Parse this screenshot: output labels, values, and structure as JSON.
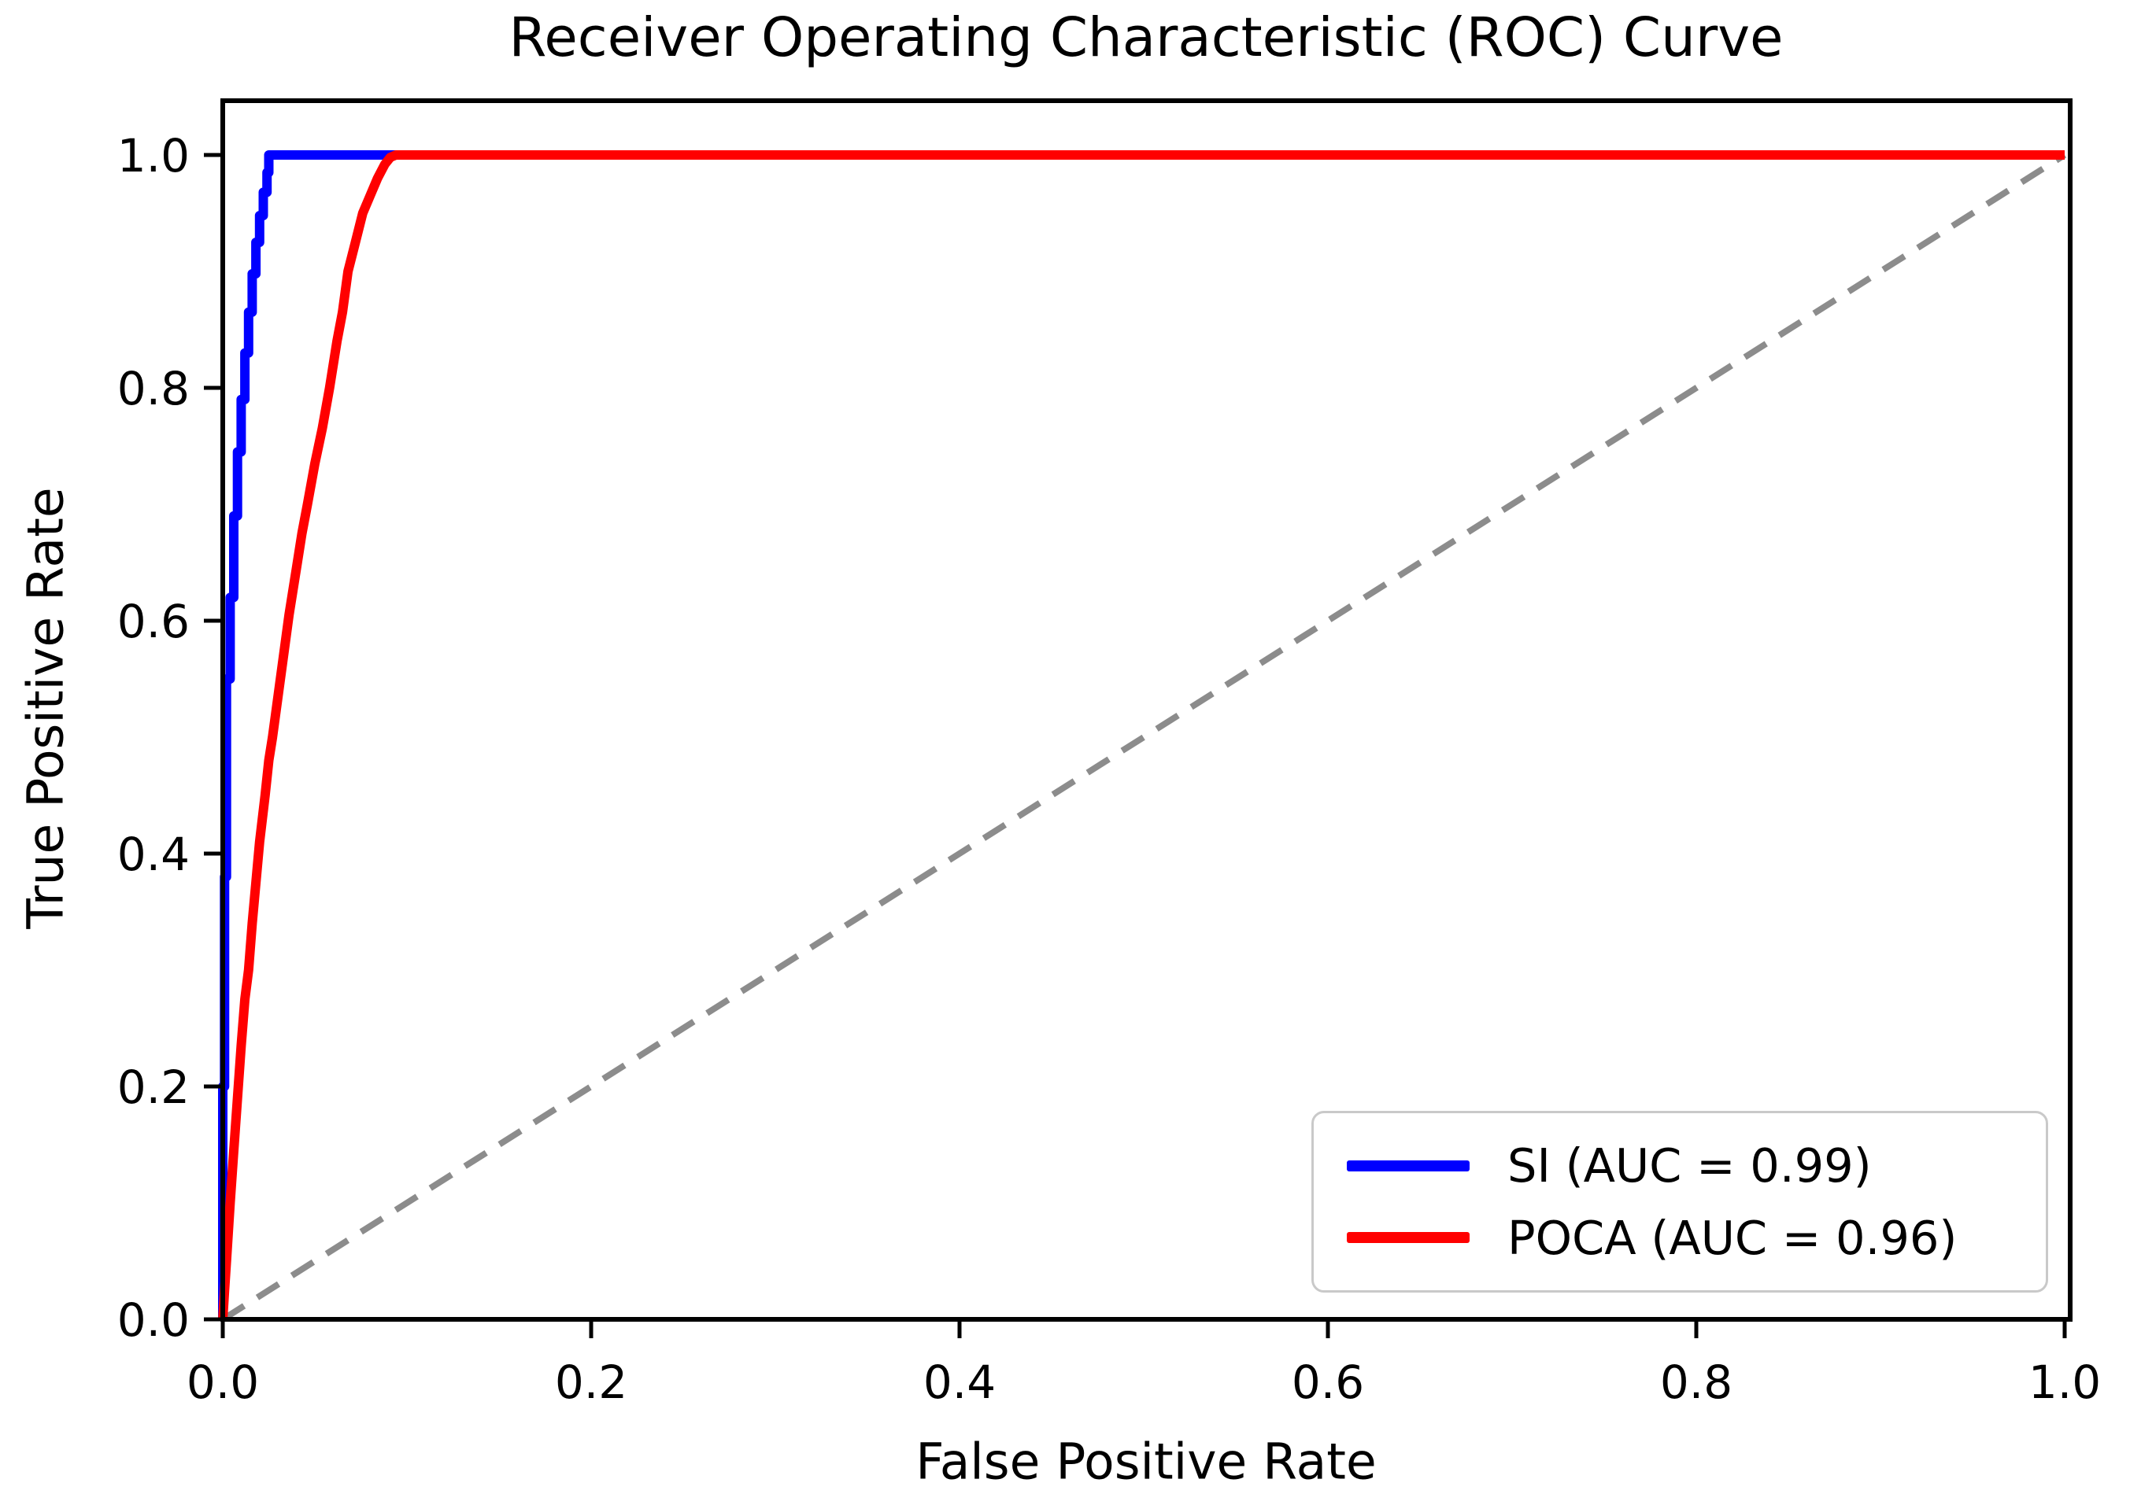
{
  "figure": {
    "background": "#ffffff",
    "text_color": "#000000",
    "spine_color": "#000000"
  },
  "chart_data": {
    "type": "line",
    "title": "Receiver Operating Characteristic (ROC) Curve",
    "xlabel": "False Positive Rate",
    "ylabel": "True Positive Rate",
    "xlim": [
      0.0,
      1.003
    ],
    "ylim": [
      0.0,
      1.047
    ],
    "grid": false,
    "xticks": {
      "values": [
        0.0,
        0.2,
        0.4,
        0.6,
        0.8,
        1.0
      ],
      "labels": [
        "0.0",
        "0.2",
        "0.4",
        "0.6",
        "0.8",
        "1.0"
      ]
    },
    "yticks": {
      "values": [
        0.0,
        0.2,
        0.4,
        0.6,
        0.8,
        1.0
      ],
      "labels": [
        "0.0",
        "0.2",
        "0.4",
        "0.6",
        "0.8",
        "1.0"
      ]
    },
    "legend": {
      "position": "lower right",
      "border_color": "#c9c9c9",
      "background": "#ffffff"
    },
    "series": [
      {
        "id": "chance",
        "name": "chance-diagonal",
        "color": "#8c8c8c",
        "style": "dashed",
        "linewidth": 8,
        "in_legend": false,
        "points": [
          [
            0.0,
            0.0
          ],
          [
            1.0,
            1.0
          ]
        ]
      },
      {
        "id": "si",
        "name": "SI (AUC = 0.99)",
        "auc": 0.99,
        "color": "#0000ff",
        "style": "solid",
        "linewidth": 12,
        "in_legend": true,
        "points": [
          [
            0.0,
            0.0
          ],
          [
            0.0,
            0.2
          ],
          [
            0.001,
            0.2
          ],
          [
            0.001,
            0.38
          ],
          [
            0.002,
            0.38
          ],
          [
            0.002,
            0.55
          ],
          [
            0.004,
            0.55
          ],
          [
            0.004,
            0.62
          ],
          [
            0.006,
            0.62
          ],
          [
            0.006,
            0.69
          ],
          [
            0.008,
            0.69
          ],
          [
            0.008,
            0.745
          ],
          [
            0.01,
            0.745
          ],
          [
            0.01,
            0.79
          ],
          [
            0.012,
            0.79
          ],
          [
            0.012,
            0.83
          ],
          [
            0.014,
            0.83
          ],
          [
            0.014,
            0.865
          ],
          [
            0.016,
            0.865
          ],
          [
            0.016,
            0.898
          ],
          [
            0.018,
            0.898
          ],
          [
            0.018,
            0.925
          ],
          [
            0.02,
            0.925
          ],
          [
            0.02,
            0.948
          ],
          [
            0.022,
            0.948
          ],
          [
            0.022,
            0.968
          ],
          [
            0.024,
            0.968
          ],
          [
            0.024,
            0.985
          ],
          [
            0.025,
            0.985
          ],
          [
            0.025,
            1.0
          ],
          [
            1.0,
            1.0
          ]
        ]
      },
      {
        "id": "poca",
        "name": "POCA (AUC = 0.96)",
        "auc": 0.96,
        "color": "#ff0000",
        "style": "solid",
        "linewidth": 12,
        "in_legend": true,
        "points": [
          [
            0.0,
            0.0
          ],
          [
            0.001,
            0.025
          ],
          [
            0.002,
            0.05
          ],
          [
            0.004,
            0.1
          ],
          [
            0.006,
            0.145
          ],
          [
            0.008,
            0.19
          ],
          [
            0.01,
            0.235
          ],
          [
            0.012,
            0.275
          ],
          [
            0.014,
            0.3
          ],
          [
            0.016,
            0.34
          ],
          [
            0.018,
            0.375
          ],
          [
            0.02,
            0.41
          ],
          [
            0.023,
            0.45
          ],
          [
            0.025,
            0.48
          ],
          [
            0.027,
            0.5
          ],
          [
            0.03,
            0.535
          ],
          [
            0.033,
            0.57
          ],
          [
            0.036,
            0.605
          ],
          [
            0.04,
            0.645
          ],
          [
            0.043,
            0.675
          ],
          [
            0.046,
            0.7
          ],
          [
            0.05,
            0.735
          ],
          [
            0.054,
            0.765
          ],
          [
            0.058,
            0.8
          ],
          [
            0.062,
            0.84
          ],
          [
            0.065,
            0.865
          ],
          [
            0.068,
            0.9
          ],
          [
            0.072,
            0.925
          ],
          [
            0.076,
            0.95
          ],
          [
            0.08,
            0.965
          ],
          [
            0.084,
            0.98
          ],
          [
            0.088,
            0.992
          ],
          [
            0.091,
            0.998
          ],
          [
            0.094,
            1.0
          ],
          [
            1.0,
            1.0
          ]
        ]
      }
    ]
  }
}
